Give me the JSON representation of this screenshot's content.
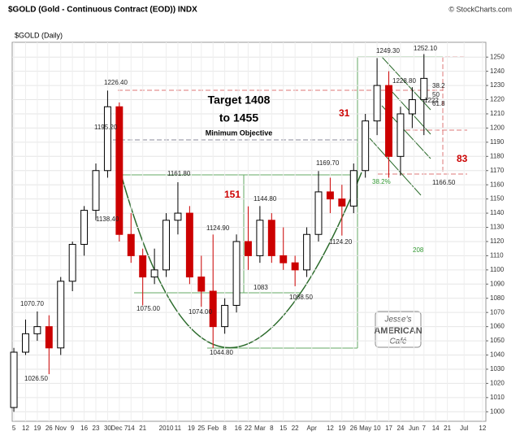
{
  "chart_data": {
    "type": "candlestick",
    "title": "$GOLD (Gold - Continuous Contract (EOD)) INDX",
    "credit": "© StockCharts.com",
    "subtitle": "$GOLD (Daily)",
    "x": [
      0,
      7,
      14,
      21,
      28,
      35,
      42,
      49,
      56,
      63,
      70,
      77,
      84,
      91,
      98,
      105,
      112,
      119,
      126,
      133,
      140,
      147,
      154,
      161,
      168,
      175,
      182,
      189,
      196,
      203,
      210,
      217,
      224,
      231,
      238,
      245
    ],
    "open": [
      1003,
      1042,
      1055,
      1060,
      1045,
      1092,
      1118,
      1142,
      1170,
      1215,
      1125,
      1110,
      1095,
      1100,
      1135,
      1140,
      1095,
      1085,
      1060,
      1075,
      1120,
      1110,
      1135,
      1110,
      1105,
      1100,
      1125,
      1155,
      1150,
      1145,
      1170,
      1205,
      1230,
      1180,
      1210,
      1220
    ],
    "high": [
      1045,
      1065,
      1070.7,
      1068,
      1095,
      1120,
      1145,
      1175,
      1226.4,
      1218,
      1140,
      1115,
      1115,
      1140,
      1161.8,
      1145,
      1110,
      1124.9,
      1080,
      1125,
      1144.8,
      1145,
      1140,
      1130,
      1110,
      1130,
      1169.7,
      1165,
      1160,
      1175,
      1210,
      1249.3,
      1240,
      1215,
      1228.8,
      1252.1
    ],
    "low": [
      1000,
      1040,
      1050,
      1026.5,
      1040,
      1085,
      1110,
      1135,
      1165,
      1120,
      1105,
      1075,
      1090,
      1095,
      1125,
      1090,
      1074,
      1044.8,
      1055,
      1070,
      1100,
      1105,
      1105,
      1100,
      1088.5,
      1095,
      1120,
      1140,
      1124.2,
      1140,
      1165,
      1195,
      1165,
      1166.5,
      1200,
      1195
    ],
    "close": [
      1042,
      1055,
      1060,
      1045,
      1092,
      1118,
      1142,
      1170,
      1215,
      1125,
      1110,
      1095,
      1100,
      1135,
      1140,
      1095,
      1085,
      1060,
      1075,
      1120,
      1110,
      1135,
      1110,
      1105,
      1100,
      1125,
      1155,
      1150,
      1145,
      1170,
      1205,
      1230,
      1180,
      1210,
      1220,
      1235
    ],
    "up_color": "#000000",
    "down_color": "#cc0000",
    "xlim": [
      -1,
      282
    ],
    "ylim": [
      995,
      1257
    ],
    "xticks": [
      {
        "value": 0,
        "label": "5"
      },
      {
        "value": 7,
        "label": "12"
      },
      {
        "value": 14,
        "label": "19"
      },
      {
        "value": 21,
        "label": "26"
      },
      {
        "value": 28,
        "label": "Nov"
      },
      {
        "value": 35,
        "label": "9"
      },
      {
        "value": 42,
        "label": "16"
      },
      {
        "value": 49,
        "label": "23"
      },
      {
        "value": 56,
        "label": "30"
      },
      {
        "value": 63,
        "label": "Dec 7"
      },
      {
        "value": 70,
        "label": "14"
      },
      {
        "value": 77,
        "label": "21"
      },
      {
        "value": 91,
        "label": "2010"
      },
      {
        "value": 98,
        "label": "11"
      },
      {
        "value": 106,
        "label": "19"
      },
      {
        "value": 112,
        "label": "25"
      },
      {
        "value": 119,
        "label": "Feb"
      },
      {
        "value": 126,
        "label": "8"
      },
      {
        "value": 134,
        "label": "16"
      },
      {
        "value": 140,
        "label": "22"
      },
      {
        "value": 147,
        "label": "Mar"
      },
      {
        "value": 154,
        "label": "8"
      },
      {
        "value": 161,
        "label": "15"
      },
      {
        "value": 168,
        "label": "22"
      },
      {
        "value": 178,
        "label": "Apr"
      },
      {
        "value": 189,
        "label": "12"
      },
      {
        "value": 196,
        "label": "19"
      },
      {
        "value": 203,
        "label": "26"
      },
      {
        "value": 210,
        "label": "May"
      },
      {
        "value": 217,
        "label": "10"
      },
      {
        "value": 224,
        "label": "17"
      },
      {
        "value": 231,
        "label": "24"
      },
      {
        "value": 239,
        "label": "Jun"
      },
      {
        "value": 245,
        "label": "7"
      },
      {
        "value": 252,
        "label": "14"
      },
      {
        "value": 259,
        "label": "21"
      },
      {
        "value": 269,
        "label": "Jul"
      },
      {
        "value": 280,
        "label": "12"
      }
    ],
    "yticks": [
      1000,
      1010,
      1020,
      1030,
      1040,
      1050,
      1060,
      1070,
      1080,
      1090,
      1100,
      1110,
      1120,
      1130,
      1140,
      1150,
      1160,
      1170,
      1180,
      1190,
      1200,
      1210,
      1220,
      1230,
      1240,
      1250
    ],
    "grid": true,
    "annotations": [
      "1226.40",
      "1195.20",
      "1138.40",
      "1070.70",
      "1026.50",
      "1075.00",
      "1074.00",
      "1044.80",
      "1124.90",
      "1161.80",
      "151",
      "1144.80",
      "1083",
      "1088.50",
      "1169.70",
      "1124.20",
      "38.2%",
      "208",
      "Target 1408",
      "to 1455",
      "Minimum Objective",
      "31",
      "83",
      "1249.30",
      "1252.10",
      "1228.80",
      "1222",
      "38.2",
      "50",
      "61.8",
      "1166.50"
    ],
    "logo": [
      "Jesse's",
      "AMERICAN",
      "Café"
    ]
  }
}
